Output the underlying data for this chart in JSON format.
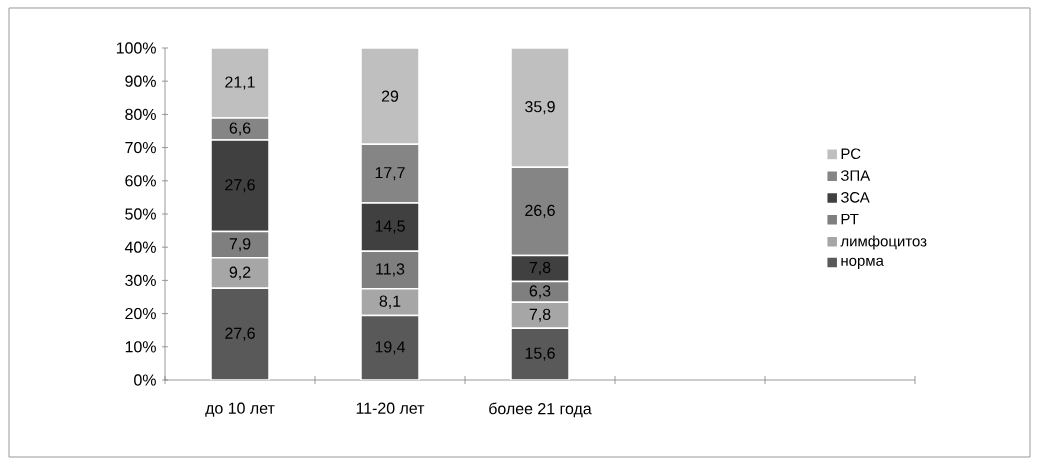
{
  "chart_data": {
    "type": "bar",
    "stacked": true,
    "categories": [
      "до 10 лет",
      "11-20 лет",
      "более 21 года",
      null,
      null
    ],
    "ylim": [
      0,
      100
    ],
    "yticks": [
      {
        "value": 0,
        "label": "0%"
      },
      {
        "value": 10,
        "label": "10%"
      },
      {
        "value": 20,
        "label": "20%"
      },
      {
        "value": 30,
        "label": "30%"
      },
      {
        "value": 40,
        "label": "40%"
      },
      {
        "value": 50,
        "label": "50%"
      },
      {
        "value": 60,
        "label": "60%"
      },
      {
        "value": 70,
        "label": "70%"
      },
      {
        "value": 80,
        "label": "80%"
      },
      {
        "value": 90,
        "label": "90%"
      },
      {
        "value": 100,
        "label": "100%"
      }
    ],
    "legend": "right",
    "grid": false,
    "series": [
      {
        "name": "норма",
        "color": "#595959",
        "values": [
          27.6,
          19.4,
          15.6,
          null,
          null
        ],
        "value_labels": [
          "27,6",
          "19,4",
          "15,6",
          null,
          null
        ]
      },
      {
        "name": "лимфоцитоз",
        "color": "#a6a6a6",
        "values": [
          9.2,
          8.1,
          7.8,
          null,
          null
        ],
        "value_labels": [
          "9,2",
          "8,1",
          "7,8",
          null,
          null
        ]
      },
      {
        "name": "РТ",
        "color": "#7f7f7f",
        "values": [
          7.9,
          11.3,
          6.3,
          null,
          null
        ],
        "value_labels": [
          "7,9",
          "11,3",
          "6,3",
          null,
          null
        ]
      },
      {
        "name": "ЗСА",
        "color": "#404040",
        "values": [
          27.6,
          14.5,
          7.8,
          null,
          null
        ],
        "value_labels": [
          "27,6",
          "14,5",
          "7,8",
          null,
          null
        ]
      },
      {
        "name": "ЗПА",
        "color": "#858585",
        "values": [
          6.6,
          17.7,
          26.6,
          null,
          null
        ],
        "value_labels": [
          "6,6",
          "17,7",
          "26,6",
          null,
          null
        ]
      },
      {
        "name": "РС",
        "color": "#bfbfbf",
        "values": [
          21.1,
          29,
          35.9,
          null,
          null
        ],
        "value_labels": [
          "21,1",
          "29",
          "35,9",
          null,
          null
        ]
      }
    ]
  }
}
